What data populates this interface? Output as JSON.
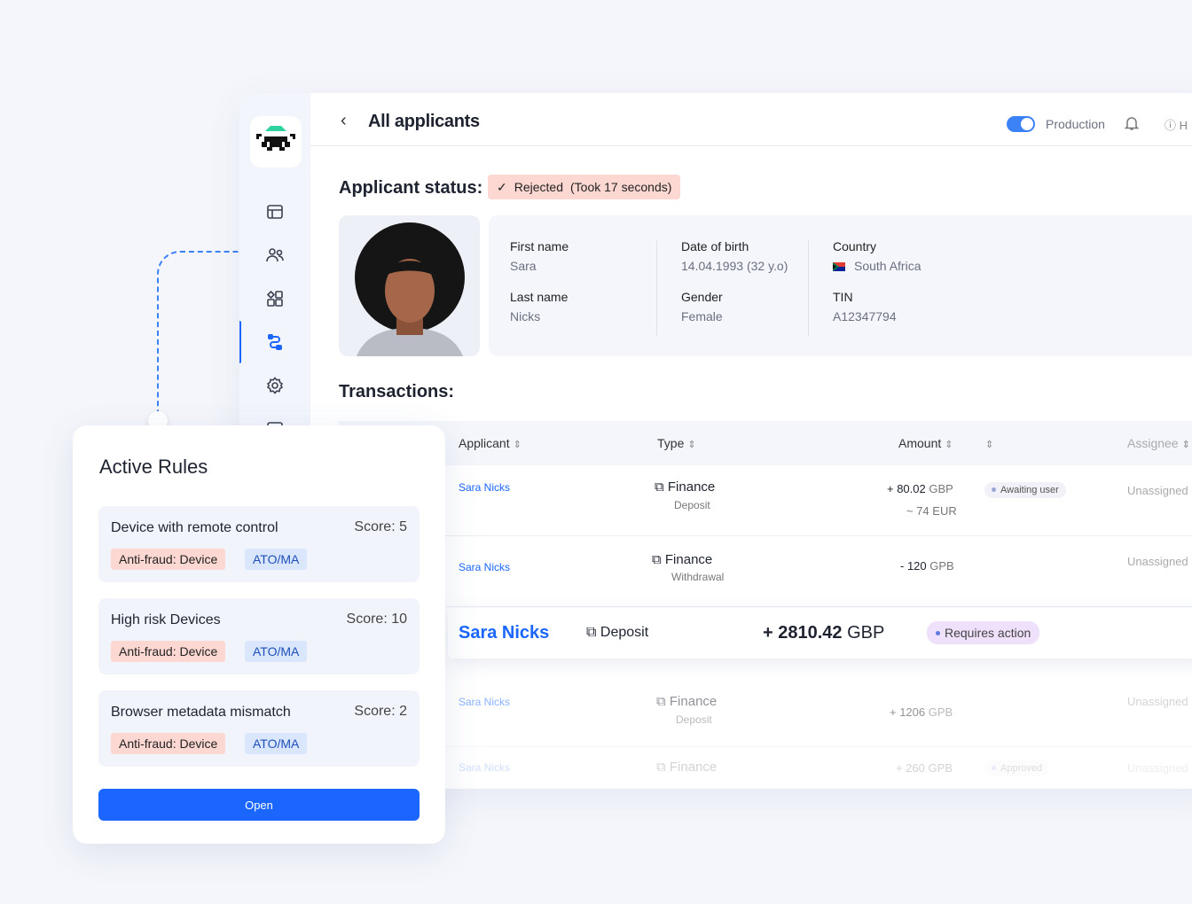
{
  "header": {
    "back_icon": "chevron-left",
    "title": "All applicants",
    "env_label": "Production",
    "env_on": true,
    "help_label": "H"
  },
  "sidebar": {
    "items": [
      "dashboard-icon",
      "users-icon",
      "apps-icon",
      "flow-icon",
      "gear-icon",
      "document-icon"
    ],
    "active": 3
  },
  "status": {
    "label": "Applicant status:",
    "value": "Rejected",
    "duration": "(Took 17 seconds)"
  },
  "applicant": {
    "first_name_label": "First name",
    "first_name": "Sara",
    "last_name_label": "Last name",
    "last_name": "Nicks",
    "dob_label": "Date of birth",
    "dob": "14.04.1993 (32 y.o)",
    "gender_label": "Gender",
    "gender": "Female",
    "country_label": "Country",
    "country": "South Africa",
    "tin_label": "TIN",
    "tin": "A12347794"
  },
  "transactions": {
    "title": "Transactions:",
    "columns": [
      "Applicant",
      "Type",
      "Amount",
      "",
      "Assignee"
    ],
    "rows": [
      {
        "applicant": "Sara Nicks",
        "type": "Finance",
        "subtype": "Deposit",
        "amount": "+ 80.02",
        "currency": "GBP",
        "converted": "~ 74 EUR",
        "status": "Awaiting user",
        "assignee": "Unassigned"
      },
      {
        "applicant": "Sara Nicks",
        "type": "Finance",
        "subtype": "Withdrawal",
        "amount": "- 120",
        "currency": "GPB",
        "assignee": "Unassigned"
      },
      {
        "applicant": "Sara Nicks",
        "type": "Deposit",
        "amount": "+ 2810.42",
        "currency": "GBP",
        "status": "Requires action"
      },
      {
        "applicant": "Sara Nicks",
        "type": "Finance",
        "subtype": "Deposit",
        "amount": "+ 1206",
        "currency": "GPB",
        "assignee": "Unassigned"
      },
      {
        "applicant": "Sara Nicks",
        "type": "Finance",
        "amount": "+ 260",
        "currency": "GPB",
        "status": "Approved",
        "assignee": "Unassigned"
      }
    ]
  },
  "rules": {
    "title": "Active Rules",
    "items": [
      {
        "name": "Device with remote control",
        "score": "Score: 5",
        "tags": [
          "Anti-fraud: Device",
          "ATO/MA"
        ]
      },
      {
        "name": "High risk Devices",
        "score": "Score: 10",
        "tags": [
          "Anti-fraud: Device",
          "ATO/MA"
        ]
      },
      {
        "name": "Browser metadata mismatch",
        "score": "Score: 2",
        "tags": [
          "Anti-fraud: Device",
          "ATO/MA"
        ]
      }
    ],
    "open_label": "Open"
  },
  "colors": {
    "accent": "#1a66ff",
    "rejected_bg": "#fdd7d2",
    "tag_blue_bg": "#d9e6fc"
  }
}
